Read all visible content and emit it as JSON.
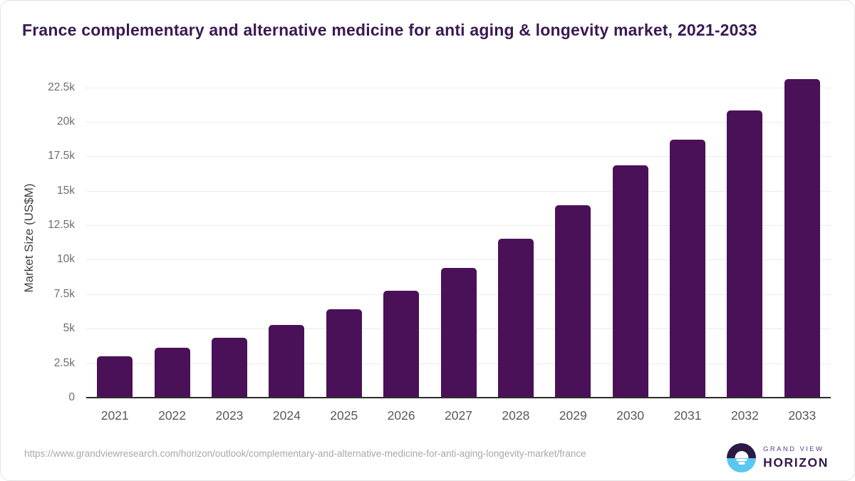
{
  "header": {
    "title": "France complementary and alternative medicine for anti aging & longevity market, 2021-2033"
  },
  "chart_data": {
    "type": "bar",
    "title": "France complementary and alternative medicine for anti aging & longevity market, 2021-2033",
    "categories": [
      "2021",
      "2022",
      "2023",
      "2024",
      "2025",
      "2026",
      "2027",
      "2028",
      "2029",
      "2030",
      "2031",
      "2032",
      "2033"
    ],
    "values": [
      3000,
      3610,
      4330,
      5280,
      6420,
      7770,
      9420,
      11510,
      13930,
      16820,
      18680,
      20840,
      23090
    ],
    "xlabel": "",
    "ylabel": "Market Size (US$M)",
    "ylim": [
      0,
      23250
    ],
    "yticks": [
      {
        "value": 0,
        "label": "0"
      },
      {
        "value": 2500,
        "label": "2.5k"
      },
      {
        "value": 5000,
        "label": "5k"
      },
      {
        "value": 7500,
        "label": "7.5k"
      },
      {
        "value": 10000,
        "label": "10k"
      },
      {
        "value": 12500,
        "label": "12.5k"
      },
      {
        "value": 15000,
        "label": "15k"
      },
      {
        "value": 17500,
        "label": "17.5k"
      },
      {
        "value": 20000,
        "label": "20k"
      },
      {
        "value": 22500,
        "label": "22.5k"
      }
    ],
    "grid": true,
    "legend": false,
    "bar_color": "#4a1158",
    "axis_line_color": "#2d2d2d",
    "gridline_color": "#ebebeb"
  },
  "footer": {
    "source_url": "https://www.grandviewresearch.com/horizon/outlook/complementary-and-alternative-medicine-for-anti-aging-longevity-market/france",
    "logo": {
      "line1": "GRAND VIEW",
      "line2": "HORIZON",
      "icon_colors": {
        "dark": "#2b1a44",
        "blue": "#5ac8f0"
      }
    }
  }
}
